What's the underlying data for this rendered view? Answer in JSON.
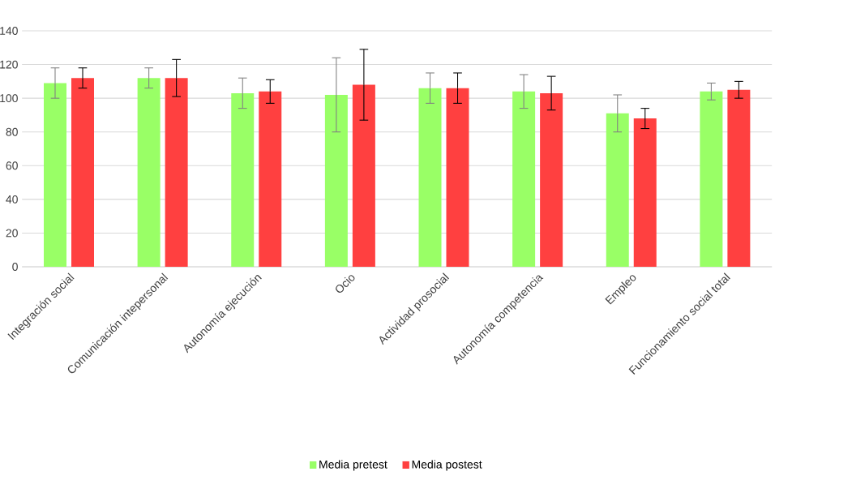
{
  "chart_data": {
    "type": "bar",
    "categories": [
      "Integración social",
      "Comunicación intepersonal",
      "Autonomía ejecución",
      "Ocio",
      "Actividad prosocial",
      "Autonomía competencia",
      "Empleo",
      "Funcionamiento social total"
    ],
    "series": [
      {
        "name": "Media pretest",
        "color": "#99ff66",
        "values": [
          109,
          112,
          103,
          102,
          106,
          104,
          91,
          104
        ],
        "errors": [
          9,
          6,
          9,
          22,
          9,
          10,
          11,
          5
        ]
      },
      {
        "name": "Media postest",
        "color": "#ff4040",
        "values": [
          112,
          112,
          104,
          108,
          106,
          103,
          88,
          105
        ],
        "errors": [
          6,
          11,
          7,
          21,
          9,
          10,
          6,
          5
        ]
      }
    ],
    "ylim": [
      0,
      140
    ],
    "yticks": [
      0,
      20,
      40,
      60,
      80,
      100,
      120,
      140
    ],
    "grid": "y",
    "legend": "bottom"
  }
}
